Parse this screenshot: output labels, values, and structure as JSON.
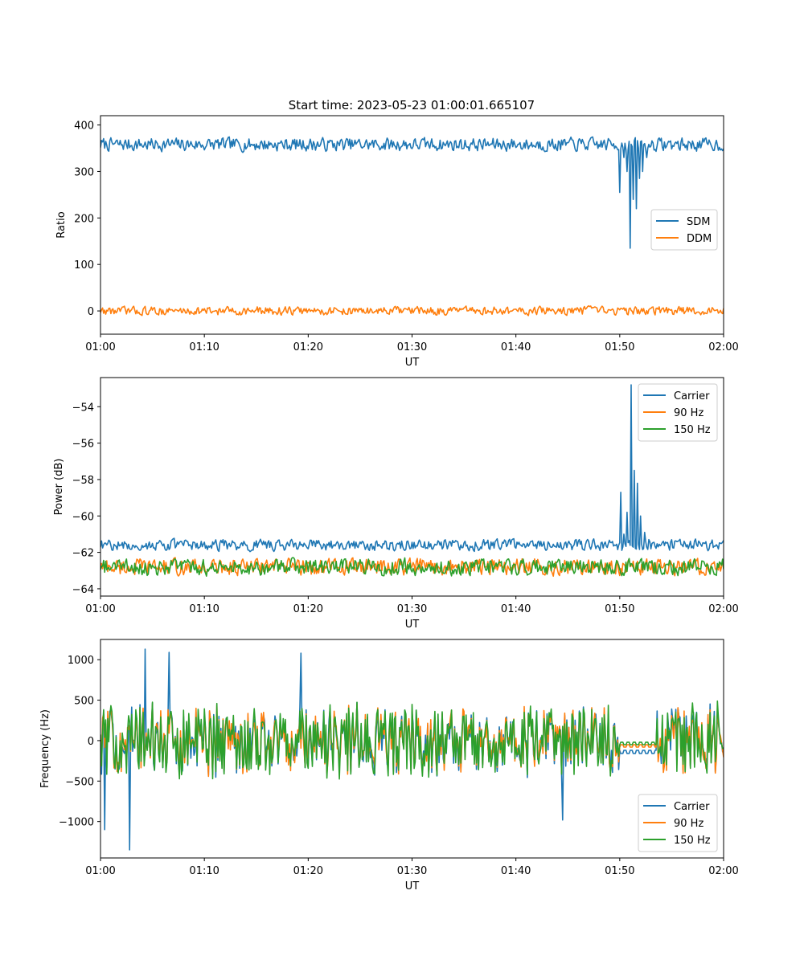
{
  "figure": {
    "title": "Start time: 2023-05-23 01:00:01.665107"
  },
  "colors": {
    "blue": "#1f77b4",
    "orange": "#ff7f0e",
    "green": "#2ca02c"
  },
  "chart_data": [
    {
      "type": "line",
      "xlabel": "UT",
      "ylabel": "Ratio",
      "xlim": [
        "01:00",
        "02:00"
      ],
      "ylim": [
        -50,
        420
      ],
      "xticks": [
        "01:00",
        "01:10",
        "01:20",
        "01:30",
        "01:40",
        "01:50",
        "02:00"
      ],
      "yticks": [
        0,
        100,
        200,
        300,
        400
      ],
      "ytick_labels": [
        "0",
        "100",
        "200",
        "300",
        "400"
      ],
      "legend": "center-right",
      "grid": false,
      "series": [
        {
          "name": "SDM",
          "color": "#1f77b4",
          "base": 358,
          "noise": 14,
          "events": [
            [
              50.0,
              255
            ],
            [
              50.4,
              330
            ],
            [
              50.7,
              300
            ],
            [
              51.0,
              135
            ],
            [
              51.3,
              240
            ],
            [
              51.6,
              220
            ],
            [
              51.9,
              285
            ],
            [
              52.2,
              300
            ],
            [
              52.6,
              330
            ]
          ]
        },
        {
          "name": "DDM",
          "color": "#ff7f0e",
          "base": 0,
          "noise": 9,
          "events": []
        }
      ]
    },
    {
      "type": "line",
      "xlabel": "UT",
      "ylabel": "Power (dB)",
      "xlim": [
        "01:00",
        "02:00"
      ],
      "ylim": [
        -64.4,
        -52.4
      ],
      "xticks": [
        "01:00",
        "01:10",
        "01:20",
        "01:30",
        "01:40",
        "01:50",
        "02:00"
      ],
      "yticks": [
        -64,
        -62,
        -60,
        -58,
        -56,
        -54
      ],
      "ytick_labels": [
        "−64",
        "−62",
        "−60",
        "−58",
        "−56",
        "−54"
      ],
      "legend": "top-right",
      "grid": false,
      "series": [
        {
          "name": "Carrier",
          "color": "#1f77b4",
          "base": -61.6,
          "noise": 0.3,
          "events": [
            [
              50.1,
              -58.7
            ],
            [
              50.4,
              -61.0
            ],
            [
              50.7,
              -59.8
            ],
            [
              51.1,
              -52.8
            ],
            [
              51.4,
              -57.5
            ],
            [
              51.7,
              -58.2
            ],
            [
              52.0,
              -60.0
            ],
            [
              52.4,
              -60.9
            ],
            [
              52.8,
              -61.3
            ]
          ]
        },
        {
          "name": "90 Hz",
          "color": "#ff7f0e",
          "base": -62.8,
          "noise": 0.45,
          "events": []
        },
        {
          "name": "150 Hz",
          "color": "#2ca02c",
          "base": -62.8,
          "noise": 0.45,
          "events": []
        }
      ]
    },
    {
      "type": "line",
      "xlabel": "UT",
      "ylabel": "Frequency (Hz)",
      "xlim": [
        "01:00",
        "02:00"
      ],
      "ylim": [
        -1450,
        1250
      ],
      "xticks": [
        "01:00",
        "01:10",
        "01:20",
        "01:30",
        "01:40",
        "01:50",
        "02:00"
      ],
      "yticks": [
        -1000,
        -500,
        0,
        500,
        1000
      ],
      "ytick_labels": [
        "−1000",
        "−500",
        "0",
        "500",
        "1000"
      ],
      "legend": "bottom-right",
      "grid": false,
      "flat_segment": [
        50.0,
        53.5,
        -50
      ],
      "series": [
        {
          "name": "Carrier",
          "color": "#1f77b4",
          "base": 0,
          "noise": 380,
          "events": [
            [
              0.4,
              -1100
            ],
            [
              2.8,
              -1350
            ],
            [
              4.3,
              1130
            ],
            [
              6.6,
              1090
            ],
            [
              19.3,
              1080
            ],
            [
              44.5,
              -980
            ]
          ]
        },
        {
          "name": "90 Hz",
          "color": "#ff7f0e",
          "base": 0,
          "noise": 360,
          "events": []
        },
        {
          "name": "150 Hz",
          "color": "#2ca02c",
          "base": 0,
          "noise": 380,
          "events": []
        }
      ]
    }
  ]
}
